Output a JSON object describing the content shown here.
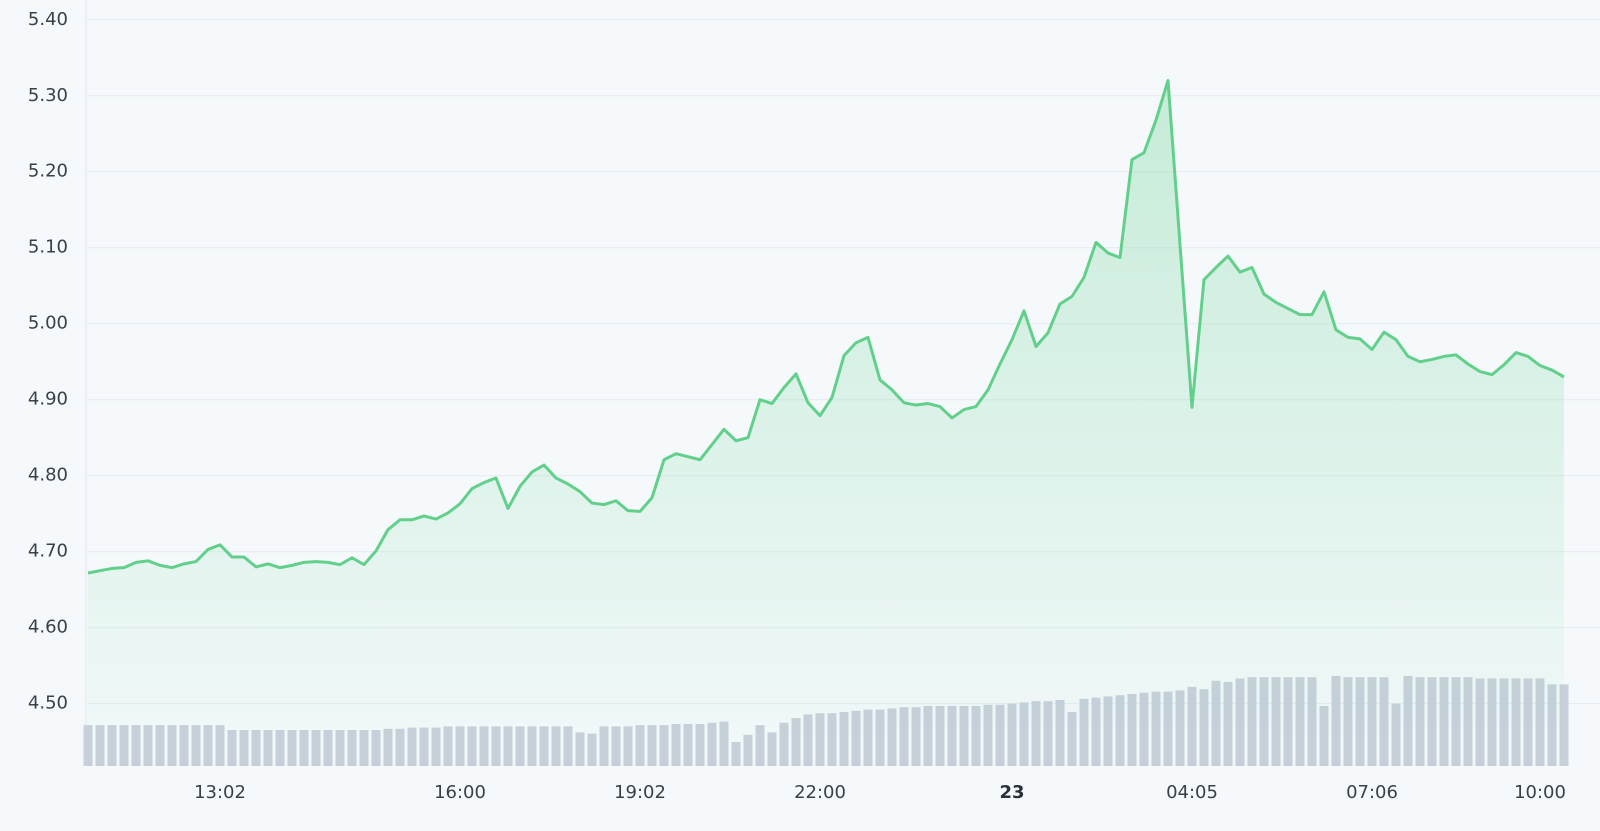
{
  "chart_data": {
    "type": "line",
    "categories": [
      null,
      null,
      null,
      null,
      null,
      null,
      null,
      null,
      null,
      null,
      null,
      "13:02",
      null,
      null,
      null,
      null,
      null,
      null,
      null,
      null,
      null,
      null,
      null,
      null,
      null,
      null,
      null,
      null,
      null,
      null,
      null,
      "16:00",
      null,
      null,
      null,
      null,
      null,
      null,
      null,
      null,
      null,
      null,
      null,
      null,
      null,
      null,
      "19:02",
      null,
      null,
      null,
      null,
      null,
      null,
      null,
      null,
      null,
      null,
      null,
      null,
      null,
      null,
      "22:00",
      null,
      null,
      null,
      null,
      null,
      null,
      null,
      null,
      null,
      null,
      null,
      null,
      null,
      null,
      null,
      "23",
      null,
      null,
      null,
      null,
      null,
      null,
      null,
      null,
      null,
      null,
      null,
      null,
      null,
      null,
      "04:05",
      null,
      null,
      null,
      null,
      null,
      null,
      null,
      null,
      null,
      null,
      null,
      null,
      null,
      null,
      "07:06",
      null,
      null,
      null,
      null,
      null,
      null,
      null,
      null,
      null,
      null,
      null,
      null,
      null,
      "10:00",
      null,
      null
    ],
    "series": [
      {
        "type": "line",
        "color": "#62d08a",
        "values": [
          4.672,
          4.675,
          4.678,
          4.679,
          4.686,
          4.688,
          4.682,
          4.679,
          4.684,
          4.687,
          4.703,
          4.709,
          4.693,
          4.693,
          4.68,
          4.684,
          4.679,
          4.682,
          4.686,
          4.687,
          4.686,
          4.683,
          4.692,
          4.683,
          4.701,
          4.729,
          4.742,
          4.742,
          4.747,
          4.743,
          4.751,
          4.763,
          4.783,
          4.791,
          4.797,
          4.757,
          4.786,
          4.805,
          4.814,
          4.797,
          4.789,
          4.779,
          4.764,
          4.762,
          4.767,
          4.754,
          4.753,
          4.771,
          4.821,
          4.829,
          4.825,
          4.821,
          4.841,
          4.861,
          4.846,
          4.85,
          4.9,
          4.895,
          4.916,
          4.934,
          4.896,
          4.879,
          4.903,
          4.958,
          4.975,
          4.982,
          4.926,
          4.913,
          4.896,
          4.893,
          4.895,
          4.891,
          4.876,
          4.887,
          4.891,
          4.913,
          4.947,
          4.979,
          5.017,
          4.97,
          4.988,
          5.026,
          5.036,
          5.061,
          5.107,
          5.093,
          5.087,
          5.216,
          5.225,
          5.268,
          5.32,
          5.104,
          4.89,
          5.058,
          5.074,
          5.089,
          5.068,
          5.074,
          5.039,
          5.028,
          5.02,
          5.012,
          5.012,
          5.042,
          4.992,
          4.982,
          4.98,
          4.966,
          4.989,
          4.979,
          4.957,
          4.95,
          4.953,
          4.957,
          4.959,
          4.947,
          4.937,
          4.933,
          4.946,
          4.962,
          4.957,
          4.945,
          4.939,
          4.93
        ]
      },
      {
        "type": "bar",
        "axis": "y2",
        "color": "#c9d0db",
        "values": [
          34,
          34,
          34,
          34,
          34,
          34,
          34,
          34,
          34,
          34,
          34,
          34,
          30,
          30,
          30,
          30,
          30,
          30,
          30,
          30,
          30,
          30,
          30,
          30,
          30,
          31,
          31,
          32,
          32,
          32,
          33,
          33,
          33,
          33,
          33,
          33,
          33,
          33,
          33,
          33,
          33,
          28,
          27,
          33,
          33,
          33,
          34,
          34,
          34,
          35,
          35,
          35,
          36,
          37,
          20,
          26,
          34,
          28,
          36,
          40,
          43,
          44,
          44,
          45,
          46,
          47,
          47,
          48,
          49,
          49,
          50,
          50,
          50,
          50,
          50,
          51,
          51,
          52,
          53,
          54,
          54,
          55,
          45,
          56,
          57,
          58,
          59,
          60,
          61,
          62,
          62,
          63,
          66,
          64,
          71,
          70,
          73,
          74,
          74,
          74,
          74,
          74,
          74,
          50,
          75,
          74,
          74,
          74,
          74,
          52,
          75,
          74,
          74,
          74,
          74,
          74,
          73,
          73,
          73,
          73,
          73,
          73,
          68,
          68
        ]
      }
    ],
    "ylim": [
      4.418,
      5.426
    ],
    "yticks": [
      {
        "value": 4.5,
        "label": "4.50"
      },
      {
        "value": 4.6,
        "label": "4.60"
      },
      {
        "value": 4.7,
        "label": "4.70"
      },
      {
        "value": 4.8,
        "label": "4.80"
      },
      {
        "value": 4.9,
        "label": "4.90"
      },
      {
        "value": 5.0,
        "label": "5.00"
      },
      {
        "value": 5.1,
        "label": "5.10"
      },
      {
        "value": 5.2,
        "label": "5.20"
      },
      {
        "value": 5.3,
        "label": "5.30"
      },
      {
        "value": 5.4,
        "label": "5.40"
      }
    ],
    "y2lim": [
      0,
      100
    ],
    "grid": true
  }
}
